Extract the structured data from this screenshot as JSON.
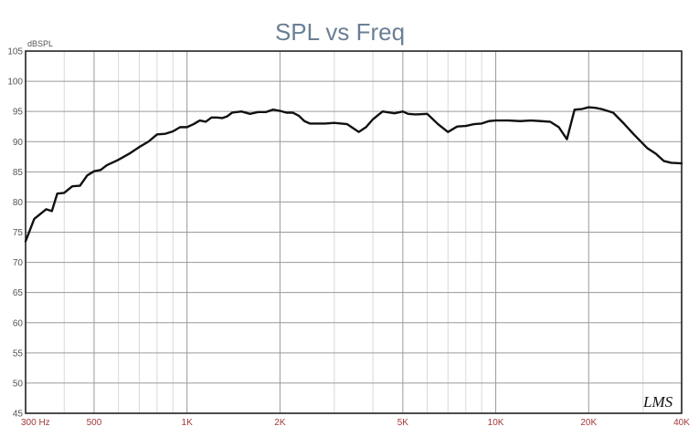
{
  "chart_data": {
    "type": "line",
    "title": "SPL vs Freq",
    "ylabel": "dBSPL",
    "xscale": "log",
    "xlim": [
      300,
      40000
    ],
    "ylim": [
      45,
      105
    ],
    "grid": true,
    "yticks": [
      "45",
      "50",
      "55",
      "60",
      "65",
      "70",
      "75",
      "80",
      "85",
      "90",
      "95",
      "100",
      "105"
    ],
    "xticks": [
      {
        "value": 300,
        "label": "300 Hz"
      },
      {
        "value": 500,
        "label": "500"
      },
      {
        "value": 1000,
        "label": "1K"
      },
      {
        "value": 2000,
        "label": "2K"
      },
      {
        "value": 5000,
        "label": "5K"
      },
      {
        "value": 10000,
        "label": "10K"
      },
      {
        "value": 20000,
        "label": "20K"
      },
      {
        "value": 40000,
        "label": "40K"
      }
    ],
    "series": [
      {
        "color": "#111111",
        "x": [
          300,
          320,
          350,
          365,
          380,
          400,
          425,
          450,
          475,
          500,
          525,
          550,
          600,
          650,
          700,
          750,
          800,
          850,
          900,
          950,
          1000,
          1050,
          1100,
          1150,
          1200,
          1250,
          1300,
          1350,
          1400,
          1500,
          1600,
          1700,
          1800,
          1900,
          2000,
          2100,
          2200,
          2300,
          2400,
          2500,
          2600,
          2800,
          3000,
          3300,
          3600,
          3800,
          4000,
          4300,
          4700,
          5000,
          5200,
          5500,
          6000,
          6500,
          7000,
          7500,
          8000,
          8500,
          9000,
          9500,
          10000,
          11000,
          12000,
          13000,
          14000,
          15000,
          16000,
          17000,
          18000,
          19000,
          20000,
          21000,
          22000,
          24000,
          26000,
          28000,
          31000,
          33000,
          35000,
          37000,
          40000
        ],
        "y": [
          73.5,
          77.2,
          78.8,
          78.5,
          81.4,
          81.5,
          82.6,
          82.7,
          84.4,
          85.1,
          85.3,
          86.1,
          87.0,
          88.0,
          89.1,
          90.0,
          91.2,
          91.3,
          91.7,
          92.4,
          92.4,
          92.9,
          93.5,
          93.3,
          94.0,
          94.0,
          93.9,
          94.2,
          94.8,
          95.0,
          94.6,
          94.9,
          94.9,
          95.3,
          95.1,
          94.8,
          94.8,
          94.3,
          93.4,
          93.0,
          93.0,
          93.0,
          93.1,
          92.9,
          91.6,
          92.4,
          93.7,
          95.0,
          94.7,
          95.0,
          94.6,
          94.5,
          94.6,
          92.9,
          91.6,
          92.5,
          92.6,
          92.9,
          93.0,
          93.4,
          93.5,
          93.5,
          93.4,
          93.5,
          93.4,
          93.3,
          92.4,
          90.4,
          95.3,
          95.4,
          95.7,
          95.6,
          95.4,
          94.8,
          93.0,
          91.2,
          88.9,
          88.0,
          86.8,
          86.5,
          86.4
        ]
      }
    ]
  },
  "brand_mark": "LMS"
}
